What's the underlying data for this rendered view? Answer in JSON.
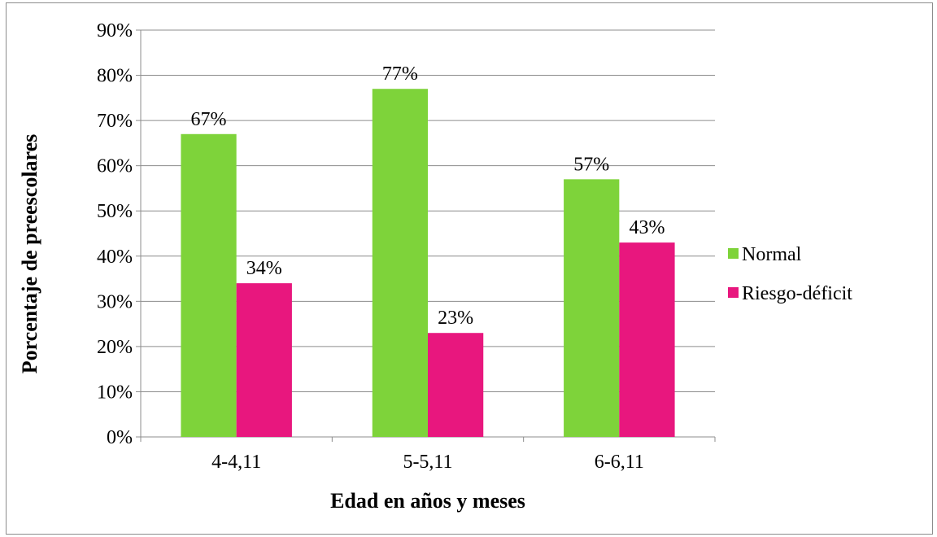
{
  "chart_data": {
    "type": "bar",
    "categories": [
      "4-4,11",
      "5-5,11",
      "6-6,11"
    ],
    "series": [
      {
        "name": "Normal",
        "values": [
          67,
          77,
          57
        ],
        "labels": [
          "67%",
          "77%",
          "57%"
        ],
        "color": "#7ED33A"
      },
      {
        "name": "Riesgo-déficit",
        "values": [
          34,
          23,
          43
        ],
        "labels": [
          "34%",
          "23%",
          "43%"
        ],
        "color": "#E8177E"
      }
    ],
    "xlabel": "Edad en años y meses",
    "ylabel": "Porcentaje de preescolares",
    "ylim": [
      0,
      90
    ],
    "yticks": [
      0,
      10,
      20,
      30,
      40,
      50,
      60,
      70,
      80,
      90
    ],
    "ytick_labels": [
      "0%",
      "10%",
      "20%",
      "30%",
      "40%",
      "50%",
      "60%",
      "70%",
      "80%",
      "90%"
    ],
    "grid": true,
    "legend_position": "right"
  }
}
